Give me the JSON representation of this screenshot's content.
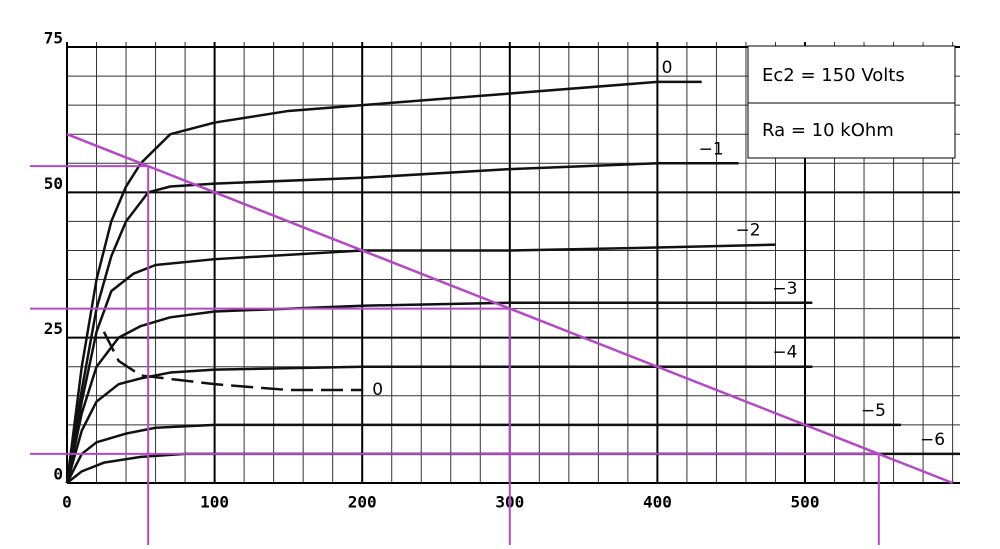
{
  "chart_data": {
    "type": "line",
    "xlim": [
      0,
      605
    ],
    "ylim": [
      0,
      75
    ],
    "xticks": [
      0,
      100,
      200,
      300,
      400,
      500
    ],
    "yticks": [
      0,
      25,
      50,
      75
    ],
    "grid": true,
    "annotations": [
      "Ec2 = 150 Volts",
      "Ra = 10 kOhm"
    ],
    "series": [
      {
        "name": "0",
        "color": "#111111",
        "x": [
          0,
          10,
          20,
          30,
          40,
          50,
          70,
          100,
          150,
          200,
          300,
          400,
          430
        ],
        "values": [
          0,
          20,
          35,
          45,
          51,
          55,
          60,
          62,
          64,
          65,
          67,
          69,
          69
        ]
      },
      {
        "name": "−1",
        "color": "#111111",
        "x": [
          0,
          10,
          20,
          30,
          40,
          55,
          70,
          100,
          200,
          300,
          400,
          455
        ],
        "values": [
          0,
          16,
          30,
          39,
          45,
          50,
          51,
          51.5,
          52.5,
          54,
          55,
          55
        ]
      },
      {
        "name": "−2",
        "color": "#111111",
        "x": [
          0,
          10,
          20,
          30,
          45,
          60,
          100,
          200,
          300,
          400,
          480
        ],
        "values": [
          0,
          14,
          26,
          33,
          36,
          37.5,
          38.5,
          40,
          40,
          40.5,
          41
        ]
      },
      {
        "name": "−3",
        "color": "#111111",
        "x": [
          0,
          10,
          20,
          35,
          50,
          70,
          100,
          200,
          300,
          400,
          505
        ],
        "values": [
          0,
          12,
          20,
          25,
          27,
          28.5,
          29.5,
          30.5,
          31,
          31,
          31
        ]
      },
      {
        "name": "−4",
        "color": "#111111",
        "x": [
          0,
          10,
          20,
          35,
          50,
          70,
          100,
          200,
          300,
          400,
          505
        ],
        "values": [
          0,
          9,
          14,
          17,
          18,
          19,
          19.5,
          20,
          20,
          20,
          20
        ]
      },
      {
        "name": "−5",
        "color": "#111111",
        "x": [
          0,
          10,
          20,
          40,
          60,
          100,
          200,
          300,
          400,
          565
        ],
        "values": [
          0,
          5,
          7,
          8.5,
          9.5,
          10,
          10,
          10,
          10,
          10
        ]
      },
      {
        "name": "−6",
        "color": "#111111",
        "x": [
          0,
          10,
          25,
          50,
          80,
          150,
          300,
          450,
          605
        ],
        "values": [
          0,
          2,
          3.5,
          4.5,
          5,
          5,
          5,
          5,
          5
        ]
      },
      {
        "name": "0",
        "color": "#111111",
        "dash": true,
        "x": [
          25,
          35,
          50,
          100,
          150,
          200
        ],
        "values": [
          26,
          21,
          18.5,
          17,
          16,
          16
        ]
      },
      {
        "name": "Ra",
        "color": "#b548c6",
        "x": [
          0,
          600
        ],
        "values": [
          60,
          0
        ]
      }
    ],
    "guides": [
      {
        "x": 55,
        "y": 54.5
      },
      {
        "x": 300,
        "y": 30
      },
      {
        "x": 550,
        "y": 5
      }
    ],
    "guide_color": "#b548c6"
  }
}
